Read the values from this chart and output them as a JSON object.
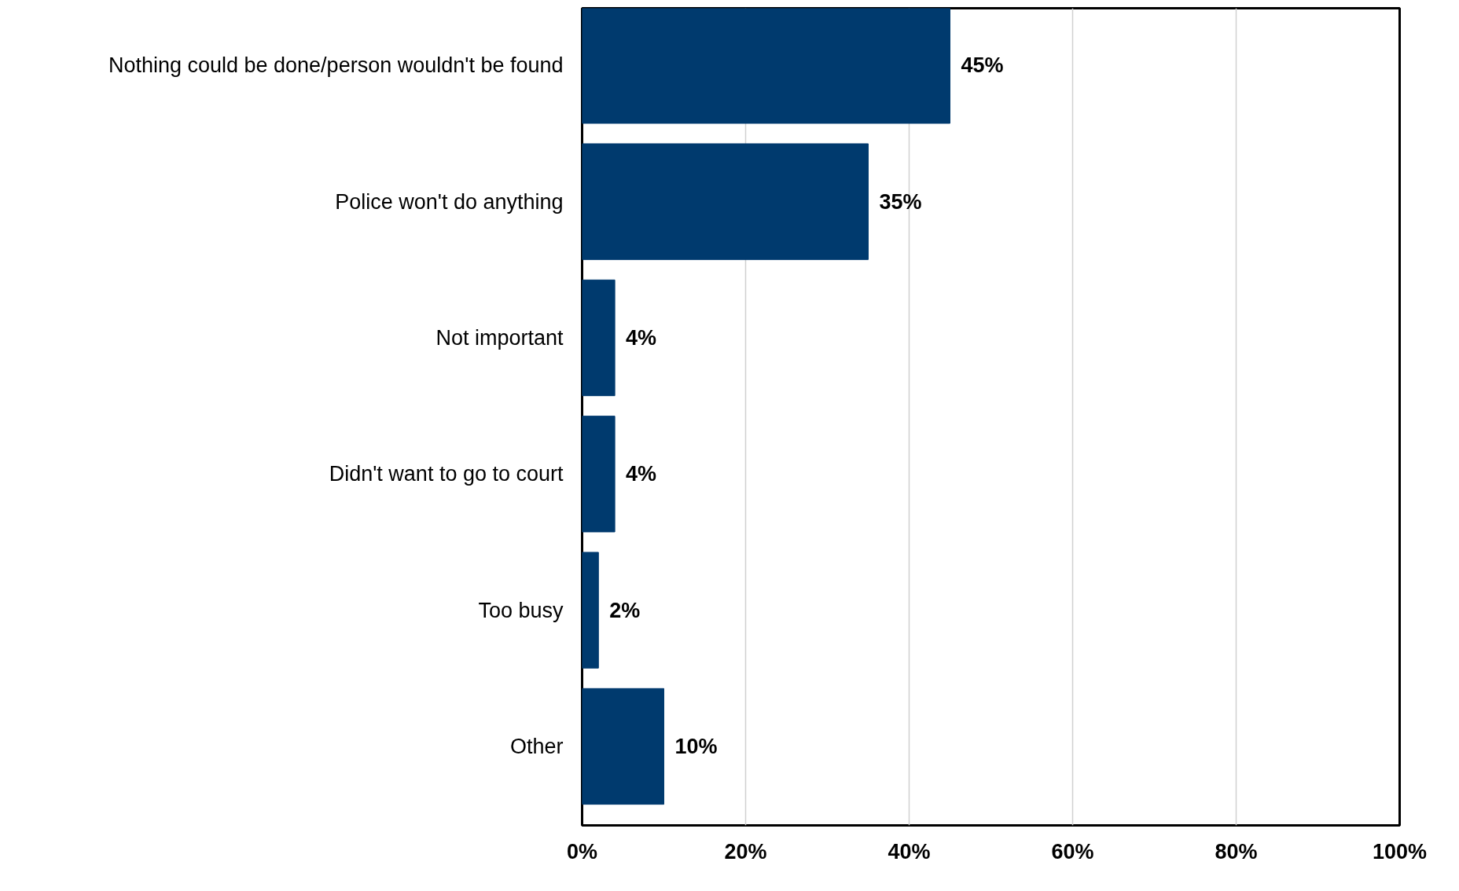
{
  "chart_data": {
    "type": "bar",
    "orientation": "horizontal",
    "categories": [
      "Nothing could be done/person wouldn't be found",
      "Police won't do anything",
      "Not important",
      "Didn't want to go to court",
      "Too busy",
      "Other"
    ],
    "values": [
      45,
      35,
      4,
      4,
      2,
      10
    ],
    "value_labels": [
      "45%",
      "35%",
      "4%",
      "4%",
      "2%",
      "10%"
    ],
    "color": "#003a6e",
    "xlim": [
      0,
      100
    ],
    "xticks": [
      {
        "value": 0,
        "label": "0%"
      },
      {
        "value": 20,
        "label": "20%"
      },
      {
        "value": 40,
        "label": "40%"
      },
      {
        "value": 60,
        "label": "60%"
      },
      {
        "value": 80,
        "label": "80%"
      },
      {
        "value": 100,
        "label": "100%"
      }
    ],
    "grid": "x"
  }
}
